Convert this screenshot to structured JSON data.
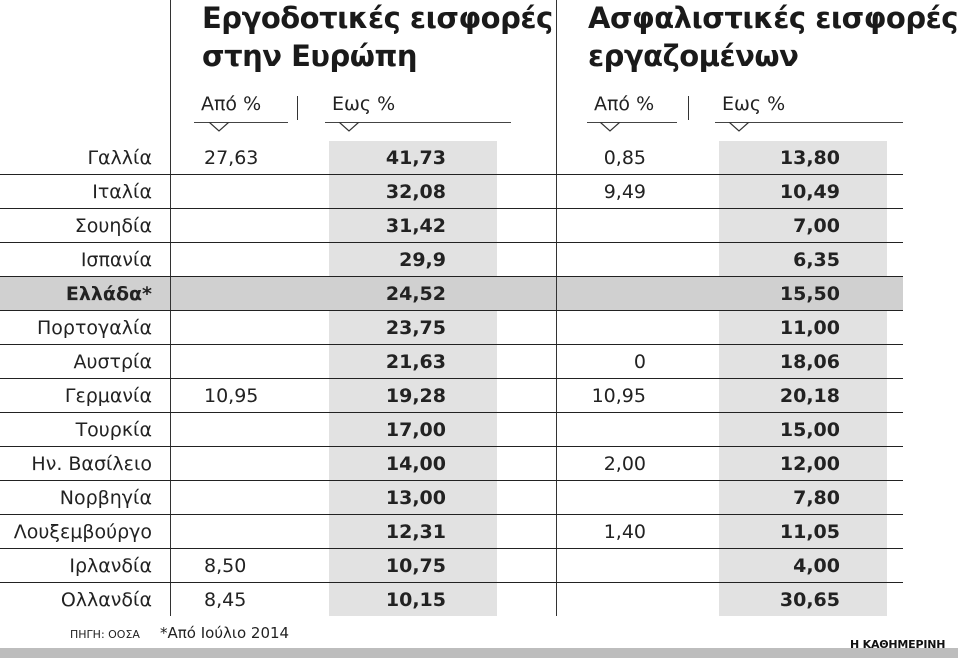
{
  "titles": {
    "employer_line1": "Εργοδοτικές εισφορές",
    "employer_line2": "στην Ευρώπη",
    "employee_line1": "Ασφαλιστικές εισφορές",
    "employee_line2": "εργαζομένων"
  },
  "column_headers": {
    "employer_from": "Από %",
    "employer_to": "Εως %",
    "employee_from": "Από %",
    "employee_to": "Εως %"
  },
  "chart_data": {
    "type": "table",
    "columns": [
      "Εργοδοτικές εισφορές Από %",
      "Εργοδοτικές εισφορές Εως %",
      "Ασφαλιστικές εισφορές Από %",
      "Ασφαλιστικές εισφορές Εως %"
    ],
    "highlight_row": "Ελλάδα*",
    "rows": [
      {
        "country": "Γαλλία",
        "emp_from": "27,63",
        "emp_to": "41,73",
        "ins_from": "0,85",
        "ins_to": "13,80"
      },
      {
        "country": "Ιταλία",
        "emp_from": "",
        "emp_to": "32,08",
        "ins_from": "9,49",
        "ins_to": "10,49"
      },
      {
        "country": "Σουηδία",
        "emp_from": "",
        "emp_to": "31,42",
        "ins_from": "",
        "ins_to": "7,00"
      },
      {
        "country": "Ισπανία",
        "emp_from": "",
        "emp_to": "29,9",
        "ins_from": "",
        "ins_to": "6,35"
      },
      {
        "country": "Ελλάδα*",
        "emp_from": "",
        "emp_to": "24,52",
        "ins_from": "",
        "ins_to": "15,50"
      },
      {
        "country": "Πορτογαλία",
        "emp_from": "",
        "emp_to": "23,75",
        "ins_from": "",
        "ins_to": "11,00"
      },
      {
        "country": "Αυστρία",
        "emp_from": "",
        "emp_to": "21,63",
        "ins_from": "0",
        "ins_to": "18,06"
      },
      {
        "country": "Γερμανία",
        "emp_from": "10,95",
        "emp_to": "19,28",
        "ins_from": "10,95",
        "ins_to": "20,18"
      },
      {
        "country": "Τουρκία",
        "emp_from": "",
        "emp_to": "17,00",
        "ins_from": "",
        "ins_to": "15,00"
      },
      {
        "country": "Ην. Βασίλειο",
        "emp_from": "",
        "emp_to": "14,00",
        "ins_from": "2,00",
        "ins_to": "12,00"
      },
      {
        "country": "Νορβηγία",
        "emp_from": "",
        "emp_to": "13,00",
        "ins_from": "",
        "ins_to": "7,80"
      },
      {
        "country": "Λουξεμβούργο",
        "emp_from": "",
        "emp_to": "12,31",
        "ins_from": "1,40",
        "ins_to": "11,05"
      },
      {
        "country": "Ιρλανδία",
        "emp_from": "8,50",
        "emp_to": "10,75",
        "ins_from": "",
        "ins_to": "4,00"
      },
      {
        "country": "Ολλανδία",
        "emp_from": "8,45",
        "emp_to": "10,15",
        "ins_from": "",
        "ins_to": "30,65"
      }
    ]
  },
  "footer": {
    "source": "ΠΗΓΗ: ΟΟΣΑ",
    "note": "*Από Ιούλιο 2014",
    "brand": "Η ΚΑΘΗΜΕΡΙΝΗ"
  },
  "colors": {
    "value_column_shade": "#e2e2e2",
    "highlight_band": "#d0d0d0",
    "text": "#1a1a1a",
    "bottom_bar": "#bdbdbd"
  }
}
